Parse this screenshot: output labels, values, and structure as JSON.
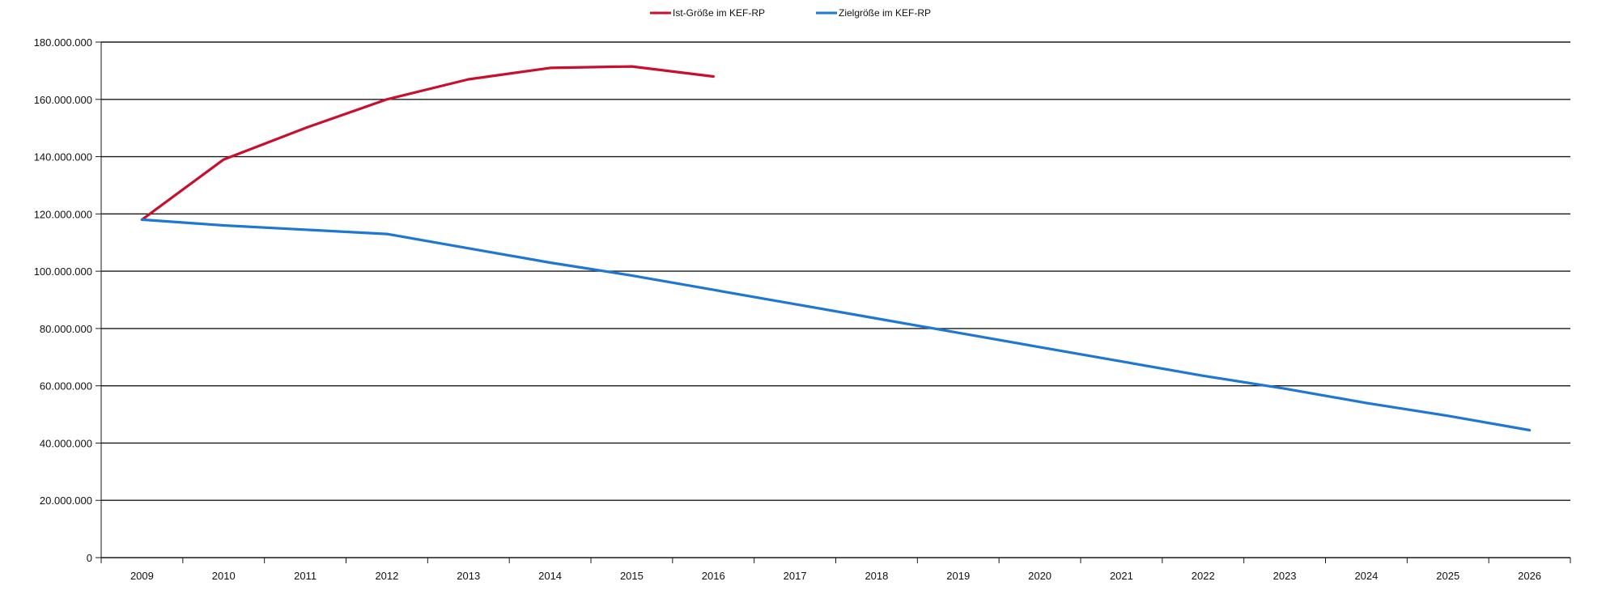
{
  "chart_data": {
    "type": "line",
    "x": [
      2009,
      2010,
      2011,
      2012,
      2013,
      2014,
      2015,
      2016,
      2017,
      2018,
      2019,
      2020,
      2021,
      2022,
      2023,
      2024,
      2025,
      2026
    ],
    "categories": [
      "2009",
      "2010",
      "2011",
      "2012",
      "2013",
      "2014",
      "2015",
      "2016",
      "2017",
      "2018",
      "2019",
      "2020",
      "2021",
      "2022",
      "2023",
      "2024",
      "2025",
      "2026"
    ],
    "series": [
      {
        "name": "Ist-Größe im KEF-RP",
        "color": "#C8102E",
        "values": [
          118000000,
          139000000,
          150000000,
          160000000,
          167000000,
          171000000,
          171500000,
          168000000,
          null,
          null,
          null,
          null,
          null,
          null,
          null,
          null,
          null,
          null
        ]
      },
      {
        "name": "Zielgröße im KEF-RP",
        "color": "#1F77D4",
        "values": [
          118000000,
          116000000,
          114500000,
          113000000,
          108000000,
          103000000,
          98500000,
          93500000,
          88500000,
          83500000,
          78500000,
          73500000,
          68500000,
          63500000,
          59000000,
          54000000,
          49500000,
          44500000
        ]
      }
    ],
    "yticks": [
      "0",
      "20.000.000",
      "40.000.000",
      "60.000.000",
      "80.000.000",
      "100.000.000",
      "120.000.000",
      "140.000.000",
      "160.000.000",
      "180.000.000"
    ],
    "ylim": [
      0,
      180000000
    ],
    "grid": true,
    "legend_position": "top-center"
  }
}
